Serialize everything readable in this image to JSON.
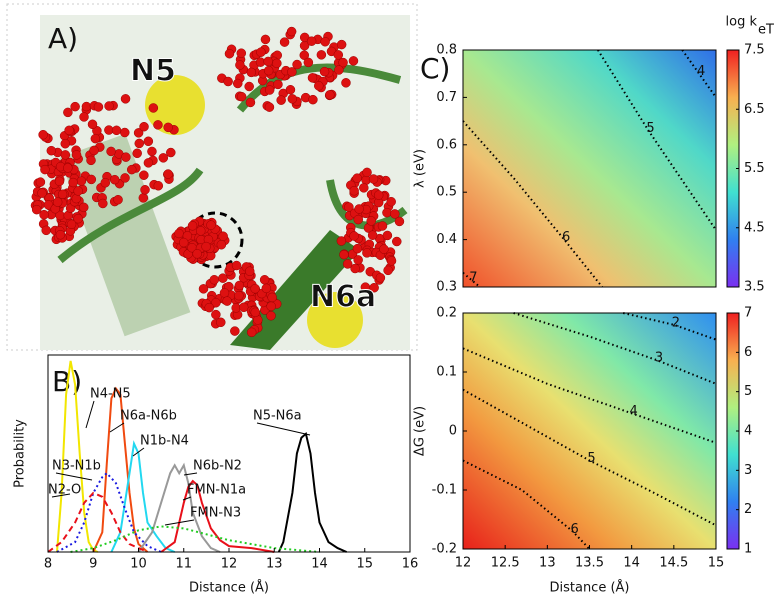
{
  "panel_labels": [
    "A)",
    "B)",
    "C)"
  ],
  "image_labels": [
    "N5",
    "N6a"
  ],
  "chart_data": [
    {
      "type": "line",
      "xlabel": "Distance (Å)",
      "ylabel": "Probability",
      "xlim": [
        8,
        16
      ],
      "xticks": [
        8,
        9,
        10,
        11,
        12,
        13,
        14,
        15,
        16
      ],
      "ylim": [
        0,
        1
      ],
      "series": [
        {
          "name": "N4-N5",
          "color": "#f2e600",
          "dash": "solid",
          "x": [
            8.2,
            8.3,
            8.4,
            8.5,
            8.6,
            8.7,
            8.8,
            8.9,
            9.0,
            9.1
          ],
          "values": [
            0,
            0.3,
            0.8,
            0.97,
            0.85,
            0.5,
            0.2,
            0.05,
            0.01,
            0
          ]
        },
        {
          "name": "N6a-N6b",
          "color": "#f04a10",
          "dash": "solid",
          "x": [
            9.0,
            9.2,
            9.3,
            9.4,
            9.5,
            9.6,
            9.7,
            9.8,
            9.9,
            10.0,
            10.2
          ],
          "values": [
            0,
            0.1,
            0.45,
            0.78,
            0.83,
            0.8,
            0.55,
            0.3,
            0.12,
            0.04,
            0
          ]
        },
        {
          "name": "N1b-N4",
          "color": "#22d8f0",
          "dash": "solid",
          "x": [
            9.4,
            9.6,
            9.8,
            9.9,
            10.0,
            10.1,
            10.2,
            10.4,
            10.6,
            10.8
          ],
          "values": [
            0,
            0.1,
            0.4,
            0.55,
            0.5,
            0.3,
            0.15,
            0.08,
            0.02,
            0
          ]
        },
        {
          "name": "N6b-N2",
          "color": "#999999",
          "dash": "solid",
          "x": [
            10.0,
            10.3,
            10.5,
            10.7,
            10.8,
            10.9,
            11.0,
            11.1,
            11.2,
            11.4,
            11.6,
            11.8
          ],
          "values": [
            0,
            0.1,
            0.25,
            0.4,
            0.44,
            0.4,
            0.44,
            0.35,
            0.2,
            0.08,
            0.02,
            0
          ]
        },
        {
          "name": "FMN-N1a",
          "color": "#e8101a",
          "dash": "solid",
          "x": [
            10.5,
            10.8,
            11.0,
            11.1,
            11.2,
            11.3,
            11.4,
            11.6,
            11.8,
            12.0,
            12.5,
            13.0
          ],
          "values": [
            0,
            0.05,
            0.25,
            0.33,
            0.36,
            0.34,
            0.25,
            0.12,
            0.06,
            0.03,
            0.02,
            0
          ]
        },
        {
          "name": "N5-N6a",
          "color": "#000000",
          "dash": "solid",
          "x": [
            13.1,
            13.2,
            13.4,
            13.5,
            13.6,
            13.7,
            13.8,
            13.9,
            14.0,
            14.2,
            14.4,
            14.6
          ],
          "values": [
            0,
            0.05,
            0.3,
            0.5,
            0.58,
            0.6,
            0.5,
            0.3,
            0.15,
            0.05,
            0.02,
            0
          ]
        },
        {
          "name": "N3-N1b",
          "color": "#1a1ae0",
          "dash": "dotted",
          "x": [
            8.2,
            8.6,
            8.8,
            9.0,
            9.2,
            9.3,
            9.5,
            9.7,
            9.9,
            10.2,
            10.5
          ],
          "values": [
            0,
            0.05,
            0.15,
            0.3,
            0.38,
            0.4,
            0.35,
            0.22,
            0.1,
            0.03,
            0
          ]
        },
        {
          "name": "N2-O",
          "color": "#e8101a",
          "dash": "dashed",
          "x": [
            8.0,
            8.3,
            8.6,
            8.8,
            9.0,
            9.2,
            9.4,
            9.6,
            9.8,
            10.2
          ],
          "values": [
            0,
            0.05,
            0.15,
            0.25,
            0.3,
            0.28,
            0.2,
            0.1,
            0.04,
            0
          ]
        },
        {
          "name": "FMN-N3",
          "color": "#22cc22",
          "dash": "dotted",
          "x": [
            8.5,
            9.0,
            9.5,
            10.0,
            10.5,
            11.0,
            11.5,
            12.0,
            12.5,
            13.0,
            13.5,
            14.0
          ],
          "values": [
            0,
            0.02,
            0.06,
            0.11,
            0.13,
            0.12,
            0.09,
            0.06,
            0.04,
            0.02,
            0.01,
            0
          ]
        }
      ]
    },
    {
      "type": "heatmap",
      "ylabel": "λ (eV)",
      "xlim": [
        12,
        15
      ],
      "ylim": [
        0.3,
        0.8
      ],
      "yticks": [
        0.3,
        0.4,
        0.5,
        0.6,
        0.7,
        0.8
      ],
      "colorbar_label": "log k",
      "colorbar_label_sub": "eT",
      "clim": [
        3.5,
        7.5
      ],
      "cticks": [
        3.5,
        4.5,
        5.5,
        6.5,
        7.5
      ],
      "contours": [
        {
          "level": 7,
          "x": [
            12.0,
            12.1,
            12.2
          ],
          "y": [
            0.33,
            0.315,
            0.3
          ]
        },
        {
          "level": 6,
          "x": [
            12.0,
            12.6,
            13.2,
            13.65
          ],
          "y": [
            0.65,
            0.53,
            0.4,
            0.3
          ]
        },
        {
          "level": 5,
          "x": [
            13.6,
            14.2,
            15.0
          ],
          "y": [
            0.8,
            0.63,
            0.42
          ]
        },
        {
          "level": 4,
          "x": [
            14.6,
            14.8,
            15.0
          ],
          "y": [
            0.8,
            0.75,
            0.7
          ]
        }
      ]
    },
    {
      "type": "heatmap",
      "xlabel": "Distance (Å)",
      "ylabel": "ΔG (eV)",
      "xlim": [
        12,
        15
      ],
      "ylim": [
        -0.2,
        0.2
      ],
      "xticks": [
        12,
        12.5,
        13,
        13.5,
        14,
        14.5,
        15
      ],
      "yticks": [
        -0.2,
        -0.1,
        0,
        0.1,
        0.2
      ],
      "clim": [
        1,
        7
      ],
      "cticks": [
        1,
        2,
        3,
        4,
        5,
        6,
        7
      ],
      "contours": [
        {
          "level": 2,
          "x": [
            13.9,
            14.5,
            15.0
          ],
          "y": [
            0.2,
            0.18,
            0.155
          ]
        },
        {
          "level": 3,
          "x": [
            12.6,
            13.5,
            14.3,
            15.0
          ],
          "y": [
            0.2,
            0.16,
            0.12,
            0.08
          ]
        },
        {
          "level": 4,
          "x": [
            12.0,
            13.0,
            14.0,
            15.0
          ],
          "y": [
            0.14,
            0.08,
            0.03,
            -0.02
          ]
        },
        {
          "level": 5,
          "x": [
            12.0,
            13.0,
            13.5,
            14.2,
            15.0
          ],
          "y": [
            0.07,
            -0.01,
            -0.05,
            -0.1,
            -0.16
          ]
        },
        {
          "level": 6,
          "x": [
            12.0,
            12.7,
            13.3,
            13.5
          ],
          "y": [
            -0.05,
            -0.1,
            -0.17,
            -0.2
          ]
        }
      ]
    }
  ]
}
